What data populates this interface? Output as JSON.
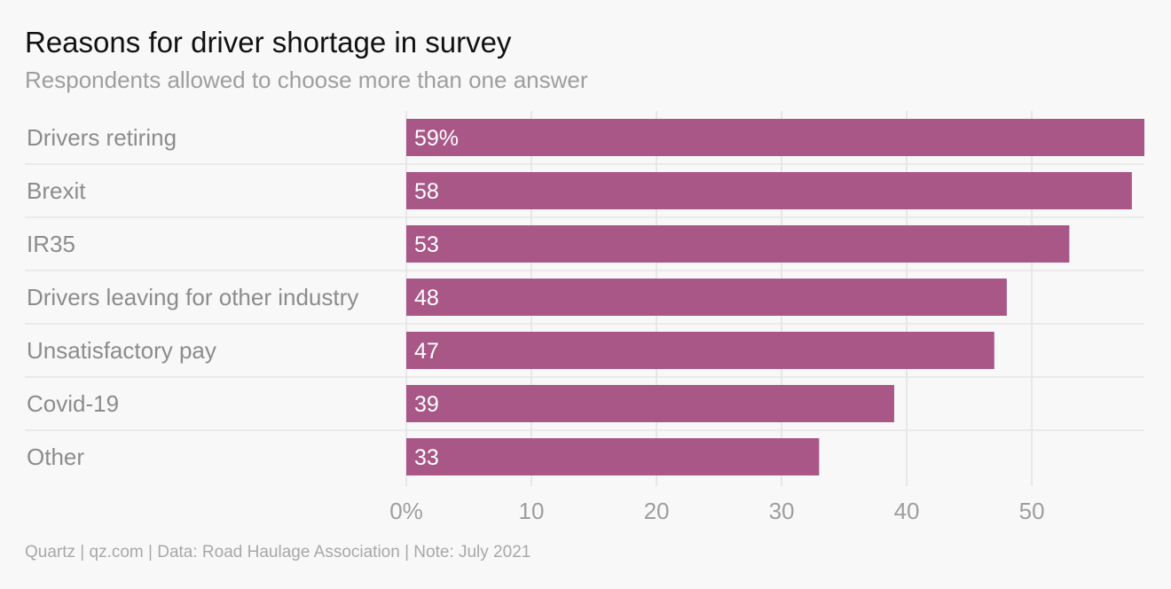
{
  "header": {
    "title": "Reasons for driver shortage in survey",
    "subtitle": "Respondents allowed to choose more than one answer"
  },
  "footer": {
    "source": "Quartz | qz.com | Data: Road Haulage Association | Note: July 2021"
  },
  "colors": {
    "bar": "#a85787",
    "gridline": "#e2e2e2",
    "separator": "#e6e6e6",
    "background": "#f8f8f8"
  },
  "chart_data": {
    "type": "bar",
    "orientation": "horizontal",
    "categories": [
      "Drivers retiring",
      "Brexit",
      "IR35",
      "Drivers leaving for other industry",
      "Unsatisfactory pay",
      "Covid-19",
      "Other"
    ],
    "values": [
      59,
      58,
      53,
      48,
      47,
      39,
      33
    ],
    "value_labels": [
      "59%",
      "58",
      "53",
      "48",
      "47",
      "39",
      "33"
    ],
    "x_ticks": [
      0,
      10,
      20,
      30,
      40,
      50
    ],
    "x_tick_labels": [
      "0%",
      "10",
      "20",
      "30",
      "40",
      "50"
    ],
    "xlim": [
      0,
      59
    ],
    "grid": true,
    "legend": "none"
  }
}
